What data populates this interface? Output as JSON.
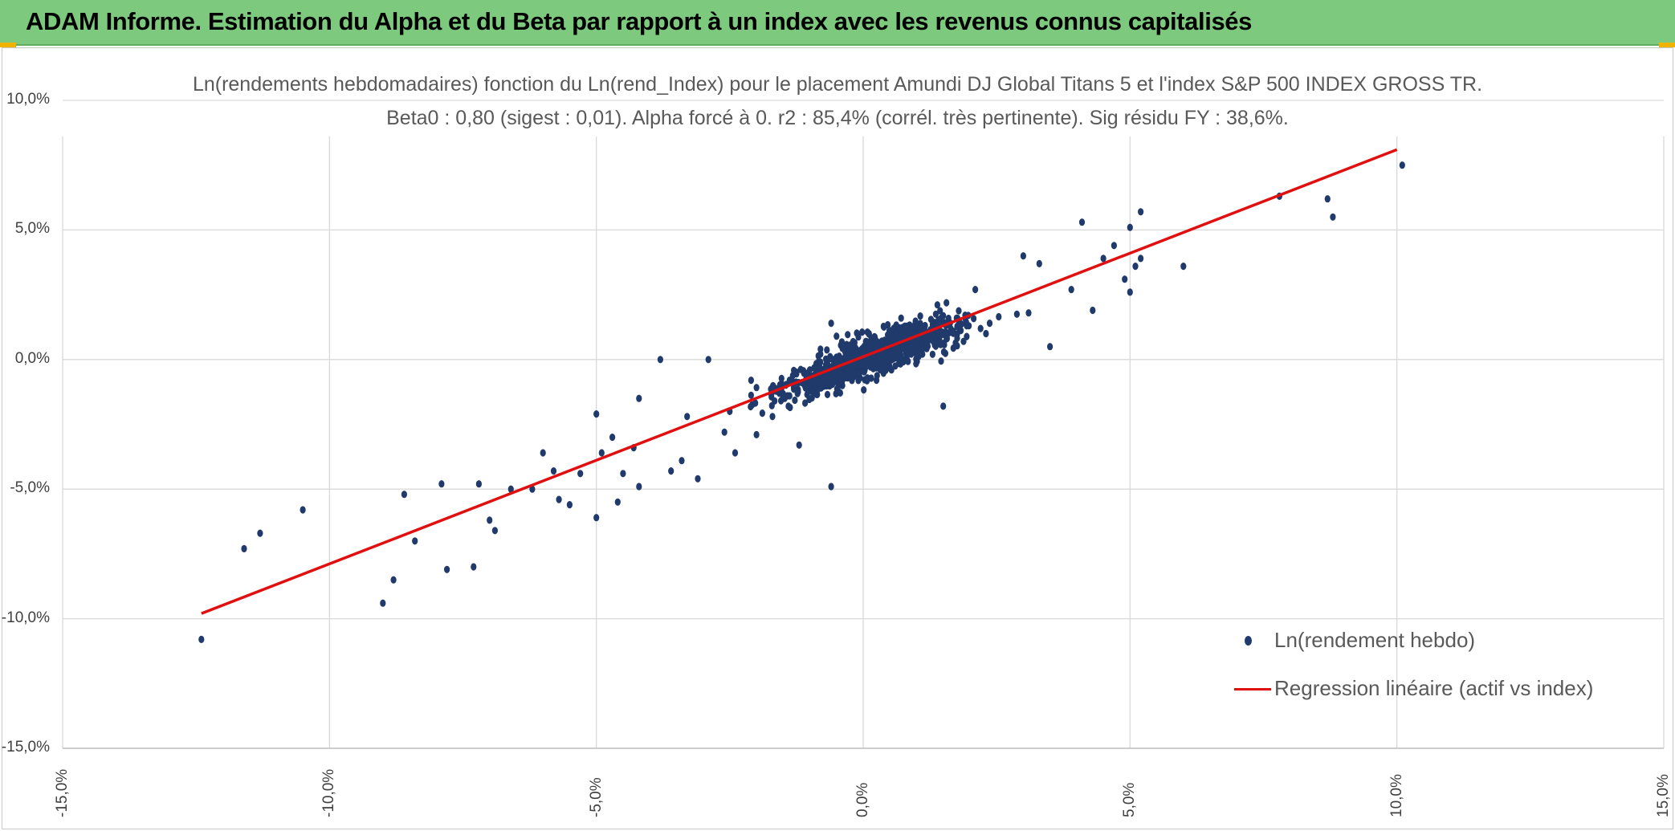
{
  "header": {
    "title": "ADAM Informe. Estimation du Alpha et du Beta par rapport à un index avec les revenus connus capitalisés",
    "background_color": "#7dc97d"
  },
  "chart_data": {
    "type": "scatter",
    "title": "Ln(rendements hebdomadaires) fonction du Ln(rend_Index) pour le placement Amundi DJ Global Titans 5 et l'index S&P 500 INDEX GROSS TR.",
    "subtitle": "Beta0 : 0,80 (sigest : 0,01). Alpha forcé à 0. r2 : 85,4% (corrél. très pertinente). Sig résidu FY : 38,6%.",
    "xlabel": "",
    "ylabel": "",
    "xlim": [
      -0.15,
      0.15
    ],
    "ylim": [
      -0.15,
      0.1
    ],
    "grid": true,
    "legend_position": "bottom-right",
    "x_ticks": [
      "-15,0%",
      "-10,0%",
      "-5,0%",
      "0,0%",
      "5,0%",
      "10,0%",
      "15,0%"
    ],
    "y_ticks": [
      "10,0%",
      "5,0%",
      "0,0%",
      "-5,0%",
      "-10,0%",
      "-15,0%"
    ],
    "series": [
      {
        "name": "Ln(rendement hebdo)",
        "type": "scatter",
        "color": "#1f3a6b",
        "note_points": "cloud of weekly returns; representative outliers listed, dense core generated around regression",
        "points": [
          [
            -0.124,
            -0.108
          ],
          [
            -0.116,
            -0.073
          ],
          [
            -0.113,
            -0.067
          ],
          [
            -0.105,
            -0.058
          ],
          [
            -0.09,
            -0.094
          ],
          [
            -0.088,
            -0.085
          ],
          [
            -0.086,
            -0.052
          ],
          [
            -0.084,
            -0.07
          ],
          [
            -0.079,
            -0.048
          ],
          [
            -0.078,
            -0.081
          ],
          [
            -0.073,
            -0.08
          ],
          [
            -0.072,
            -0.048
          ],
          [
            -0.07,
            -0.062
          ],
          [
            -0.069,
            -0.066
          ],
          [
            -0.066,
            -0.05
          ],
          [
            -0.062,
            -0.05
          ],
          [
            -0.06,
            -0.036
          ],
          [
            -0.058,
            -0.043
          ],
          [
            -0.057,
            -0.054
          ],
          [
            -0.055,
            -0.056
          ],
          [
            -0.053,
            -0.044
          ],
          [
            -0.05,
            -0.061
          ],
          [
            -0.05,
            -0.021
          ],
          [
            -0.049,
            -0.036
          ],
          [
            -0.047,
            -0.03
          ],
          [
            -0.046,
            -0.055
          ],
          [
            -0.045,
            -0.044
          ],
          [
            -0.043,
            -0.034
          ],
          [
            -0.042,
            -0.049
          ],
          [
            -0.042,
            -0.015
          ],
          [
            -0.038,
            0.0
          ],
          [
            -0.036,
            -0.043
          ],
          [
            -0.034,
            -0.039
          ],
          [
            -0.033,
            -0.022
          ],
          [
            -0.031,
            -0.046
          ],
          [
            -0.029,
            0.0
          ],
          [
            -0.026,
            -0.028
          ],
          [
            -0.025,
            -0.02
          ],
          [
            -0.024,
            -0.036
          ],
          [
            -0.021,
            -0.008
          ],
          [
            -0.02,
            -0.029
          ],
          [
            -0.017,
            -0.022
          ],
          [
            -0.014,
            -0.018
          ],
          [
            -0.012,
            -0.033
          ],
          [
            -0.01,
            -0.004
          ],
          [
            -0.006,
            -0.049
          ],
          [
            -0.006,
            0.014
          ],
          [
            -0.005,
            0.009
          ],
          [
            0.011,
            0.012
          ],
          [
            0.015,
            -0.018
          ],
          [
            0.021,
            0.027
          ],
          [
            0.023,
            0.01
          ],
          [
            0.03,
            0.04
          ],
          [
            0.031,
            0.018
          ],
          [
            0.033,
            0.037
          ],
          [
            0.035,
            0.005
          ],
          [
            0.039,
            0.027
          ],
          [
            0.041,
            0.053
          ],
          [
            0.043,
            0.019
          ],
          [
            0.045,
            0.039
          ],
          [
            0.047,
            0.044
          ],
          [
            0.049,
            0.031
          ],
          [
            0.05,
            0.051
          ],
          [
            0.05,
            0.026
          ],
          [
            0.051,
            0.036
          ],
          [
            0.052,
            0.057
          ],
          [
            0.052,
            0.039
          ],
          [
            0.06,
            0.036
          ],
          [
            0.078,
            0.063
          ],
          [
            0.087,
            0.062
          ],
          [
            0.088,
            0.055
          ],
          [
            0.101,
            0.075
          ]
        ]
      },
      {
        "name": "Regression linéaire (actif vs index)",
        "type": "line",
        "color": "#e01010",
        "x": [
          -0.124,
          0.1
        ],
        "y": [
          -0.098,
          0.081
        ]
      }
    ]
  }
}
